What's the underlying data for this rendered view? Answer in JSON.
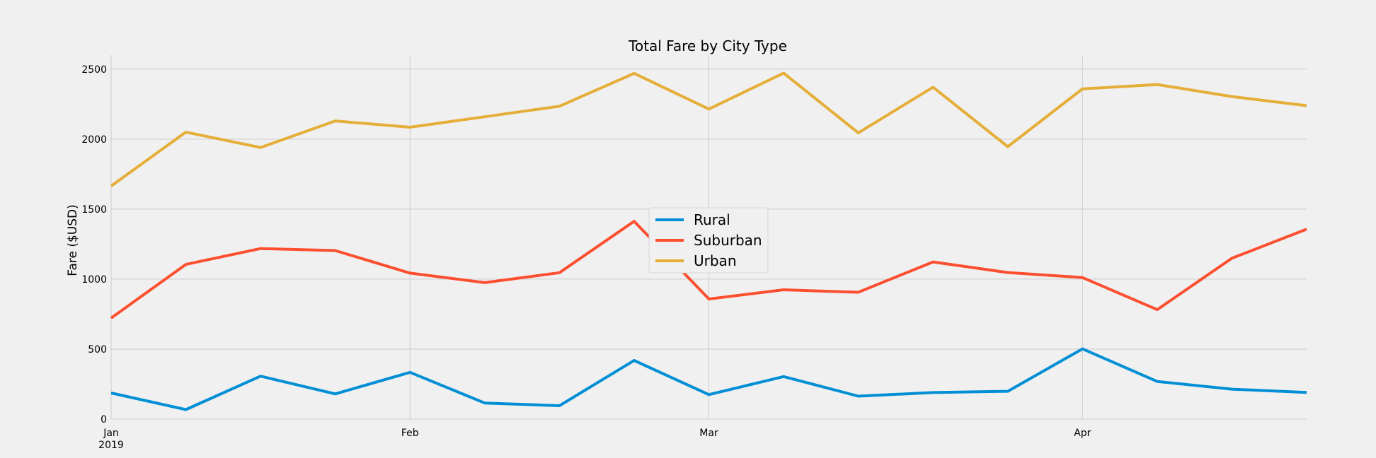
{
  "chart_data": {
    "type": "line",
    "title": "Total Fare by City Type",
    "xlabel": "",
    "ylabel": "Fare ($USD)",
    "x": [
      "2019-01-06",
      "2019-01-13",
      "2019-01-20",
      "2019-01-27",
      "2019-02-03",
      "2019-02-10",
      "2019-02-17",
      "2019-02-24",
      "2019-03-03",
      "2019-03-10",
      "2019-03-17",
      "2019-03-24",
      "2019-03-31",
      "2019-04-07",
      "2019-04-14",
      "2019-04-21",
      "2019-04-28"
    ],
    "xlim": [
      "2019-01-06",
      "2019-04-28"
    ],
    "ylim": [
      0,
      2600
    ],
    "yticks": [
      0,
      500,
      1000,
      1500,
      2000,
      2500
    ],
    "xticks": [
      {
        "date": "2019-01-06",
        "label": "Jan",
        "sublabel": "2019"
      },
      {
        "date": "2019-02-03",
        "label": "Feb",
        "sublabel": ""
      },
      {
        "date": "2019-03-03",
        "label": "Mar",
        "sublabel": ""
      },
      {
        "date": "2019-04-07",
        "label": "Apr",
        "sublabel": ""
      }
    ],
    "grid": true,
    "legend_position": "center",
    "series": [
      {
        "name": "Rural",
        "color": "#008fd5",
        "values": [
          187,
          68,
          307,
          180,
          334,
          115,
          96,
          419,
          175,
          304,
          164,
          190,
          199,
          502,
          269,
          214,
          191
        ]
      },
      {
        "name": "Suburban",
        "color": "#fc4f30",
        "values": [
          722,
          1105,
          1218,
          1204,
          1043,
          975,
          1046,
          1413,
          858,
          924,
          906,
          1123,
          1047,
          1011,
          782,
          1149,
          1357
        ]
      },
      {
        "name": "Urban",
        "color": "#e5ae38",
        "values": [
          1665,
          2050,
          1940,
          2130,
          2085,
          2160,
          2235,
          2470,
          2215,
          2472,
          2045,
          2371,
          1946,
          2359,
          2390,
          2304,
          2239
        ]
      }
    ]
  }
}
